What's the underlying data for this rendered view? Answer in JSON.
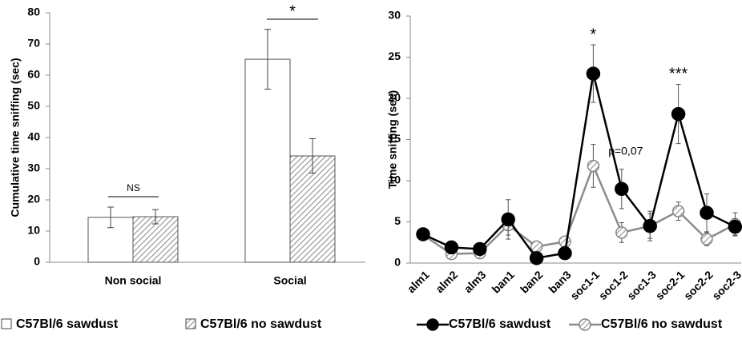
{
  "chart_data": [
    {
      "type": "bar",
      "ylabel": "Cumulative time sniffing (sec)",
      "categories": [
        "Non social",
        "Social"
      ],
      "ylim": [
        0,
        80
      ],
      "yticks": [
        0,
        10,
        20,
        30,
        40,
        50,
        60,
        70,
        80
      ],
      "series": [
        {
          "name": "C57Bl/6 sawdust",
          "color": "#ffffff",
          "values": [
            14.4,
            65.1
          ],
          "errors": [
            3.3,
            9.6
          ]
        },
        {
          "name": "C57Bl/6 no sawdust",
          "color": "#9a9a9a",
          "values": [
            14.6,
            34.1
          ],
          "errors": [
            2.3,
            5.5
          ]
        }
      ],
      "annotations": [
        "NS",
        "*"
      ]
    },
    {
      "type": "line",
      "ylabel": "Time sniffing (sec)",
      "categories": [
        "alm1",
        "alm2",
        "alm3",
        "ban1",
        "ban2",
        "ban3",
        "soc1-1",
        "soc1-2",
        "soc1-3",
        "soc2-1",
        "soc2-2",
        "soc2-3"
      ],
      "ylim": [
        0,
        30
      ],
      "yticks": [
        0,
        5,
        10,
        15,
        20,
        25,
        30
      ],
      "series": [
        {
          "name": "C57Bl/6 sawdust",
          "color": "#000000",
          "values": [
            3.5,
            1.9,
            1.7,
            5.3,
            0.6,
            1.2,
            23.0,
            9.0,
            4.5,
            18.1,
            6.1,
            4.4
          ],
          "errors": [
            0.4,
            0.5,
            0.4,
            2.4,
            0.3,
            0.3,
            3.5,
            2.4,
            1.5,
            3.6,
            2.3,
            1.0
          ]
        },
        {
          "name": "C57Bl/6 no sawdust",
          "color": "#8c8c8c",
          "values": [
            3.4,
            1.1,
            1.2,
            4.6,
            2.0,
            2.6,
            11.8,
            3.7,
            4.5,
            6.3,
            2.9,
            4.7
          ],
          "errors": [
            0.4,
            0.5,
            0.5,
            1.2,
            0.6,
            0.5,
            2.6,
            1.2,
            1.8,
            1.1,
            0.8,
            1.4
          ]
        }
      ],
      "annotations": [
        "*",
        "***",
        "p=0,07"
      ]
    }
  ]
}
